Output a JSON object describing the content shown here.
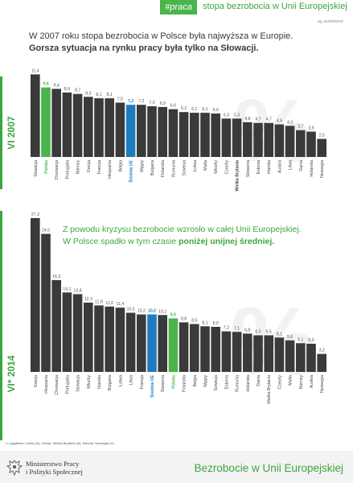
{
  "header": {
    "hashtag": "#praca",
    "title": "stopa bezrobocia w Unii Europejskiej",
    "source": "wg. EUROSTAT"
  },
  "intro": {
    "part1": "W 2007 roku stopa bezrobocia w Polsce była najwyższa w Europie. ",
    "part2": "Gorsza sytuacja na rynku pracy była tylko na Słowacji."
  },
  "mid_text": {
    "part1": "Z powodu kryzysu bezrobocie wzrosło w całej Unii Europejskiej. W Polsce spadło w tym czasie ",
    "part2": "poniżej unijnej średniej."
  },
  "footnote": "* z wyjątkiem: Łotwa (III), Grecja, Wielka Brytania (III), Estonia, Norwegia (V)",
  "footer": {
    "ministry_line1": "Ministerstwo Pracy",
    "ministry_line2": "i Polityki Społecznej",
    "title": "Bezrobocie w Unii Europejskiej"
  },
  "colors": {
    "bar": "#3a3a3a",
    "poland": "#49b54a",
    "eu": "#1f7bc0",
    "accent": "#3da63e",
    "watermark": "#f2f2f2"
  },
  "chart_data": [
    {
      "type": "bar",
      "period_label": "VI 2007",
      "watermark": "%",
      "categories": [
        "Słowacja",
        "Polska",
        "Chorwacja",
        "Portugalia",
        "Niemcy",
        "Grecja",
        "Francja",
        "Hiszpania",
        "Belgia",
        "Średnia UE",
        "Węgry",
        "Bułgaria",
        "Finlandia",
        "Rumunia",
        "Szwecja",
        "Łotwa",
        "Malta",
        "Włochy",
        "Czechy",
        "Wielka Brytania",
        "Słowenia",
        "Estonia",
        "Irlandia",
        "Austria",
        "Litwa",
        "Dania",
        "Holandia",
        "Norwegia"
      ],
      "values": [
        11.4,
        9.6,
        9.4,
        8.9,
        8.7,
        8.3,
        8.1,
        8.1,
        7.5,
        7.2,
        7.2,
        7.0,
        6.9,
        6.6,
        6.2,
        6.1,
        6.1,
        6.0,
        5.3,
        5.3,
        4.8,
        4.7,
        4.7,
        4.5,
        4.3,
        3.7,
        3.5,
        2.5
      ],
      "value_labels": [
        "11,4",
        "9,6",
        "9,4",
        "8,9",
        "8,7",
        "8,3",
        "8,1",
        "8,1",
        "7,5",
        "7,2",
        "7,2",
        "7,0",
        "6,9",
        "6,6",
        "6,2",
        "6,1",
        "6,1",
        "6,0",
        "5,3",
        "5,3",
        "4,8",
        "4,7",
        "4,7",
        "4,5",
        "4,3",
        "3,7",
        "3,5",
        "2,5"
      ],
      "highlight": {
        "Polska": "poland",
        "Średnia UE": "eu"
      },
      "bold_categories": [
        "Wielka Brytania"
      ]
    },
    {
      "type": "bar",
      "period_label": "VI* 2014",
      "watermark": "%",
      "categories": [
        "Grecja",
        "Hiszpania",
        "Chorwacja",
        "Portugalia",
        "Słowacja",
        "Włochy",
        "Irlandia",
        "Bułgaria",
        "Łotwa",
        "Litwa",
        "Francja",
        "Średnia UE",
        "Słowenia",
        "Polska",
        "Finlandia",
        "Belgia",
        "Węgry",
        "Szwecja",
        "Estonia",
        "Rumunia",
        "Holandia",
        "Dania",
        "Wielka Brytania",
        "Czechy",
        "Malta",
        "Niemcy",
        "Austria",
        "Norwegia"
      ],
      "values": [
        27.3,
        24.5,
        16.3,
        14.1,
        13.8,
        12.3,
        11.8,
        11.6,
        11.4,
        10.5,
        10.2,
        10.2,
        10.1,
        9.5,
        8.8,
        8.5,
        8.1,
        8.0,
        7.2,
        7.1,
        6.8,
        6.5,
        6.5,
        6.1,
        5.6,
        5.1,
        5.0,
        3.2
      ],
      "value_labels": [
        "27,3",
        "24,5",
        "16,3",
        "14,1",
        "13,8",
        "12,3",
        "11,8",
        "11,6",
        "11,4",
        "10,5",
        "10,2",
        "10,2",
        "10,1",
        "9,5",
        "8,8",
        "8,5",
        "8,1",
        "8,0",
        "7,2",
        "7,1",
        "6,8",
        "6,5",
        "6,5",
        "6,1",
        "5,6",
        "5,1",
        "5,0",
        "3,2"
      ],
      "highlight": {
        "Polska": "poland",
        "Średnia UE": "eu"
      },
      "bold_categories": []
    }
  ]
}
